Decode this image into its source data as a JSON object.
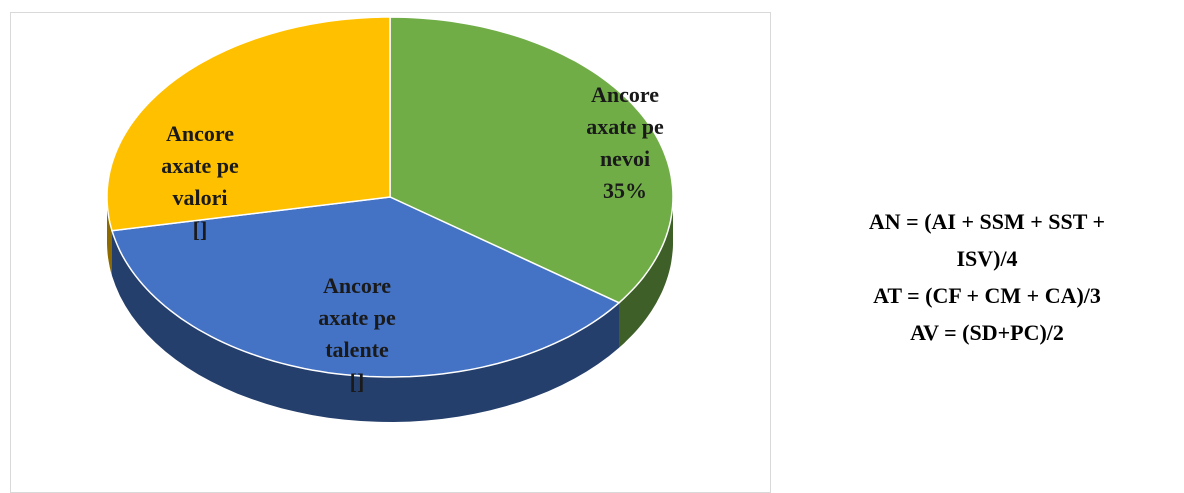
{
  "chart_data": {
    "type": "pie",
    "categories": [
      "Ancore axate pe nevoi",
      "Ancore axate pe talente",
      "Ancore axate pe valori"
    ],
    "values": [
      35,
      37,
      28
    ],
    "value_labels": [
      "35%",
      "[]",
      "[]"
    ],
    "colors": [
      "#70ad47",
      "#4472c4",
      "#ffc000"
    ]
  },
  "formulas": [
    "AN = (AI + SSM + SST +",
    "ISV)/4",
    "AT = (CF + CM + CA)/3",
    "AV = (SD+PC)/2"
  ]
}
